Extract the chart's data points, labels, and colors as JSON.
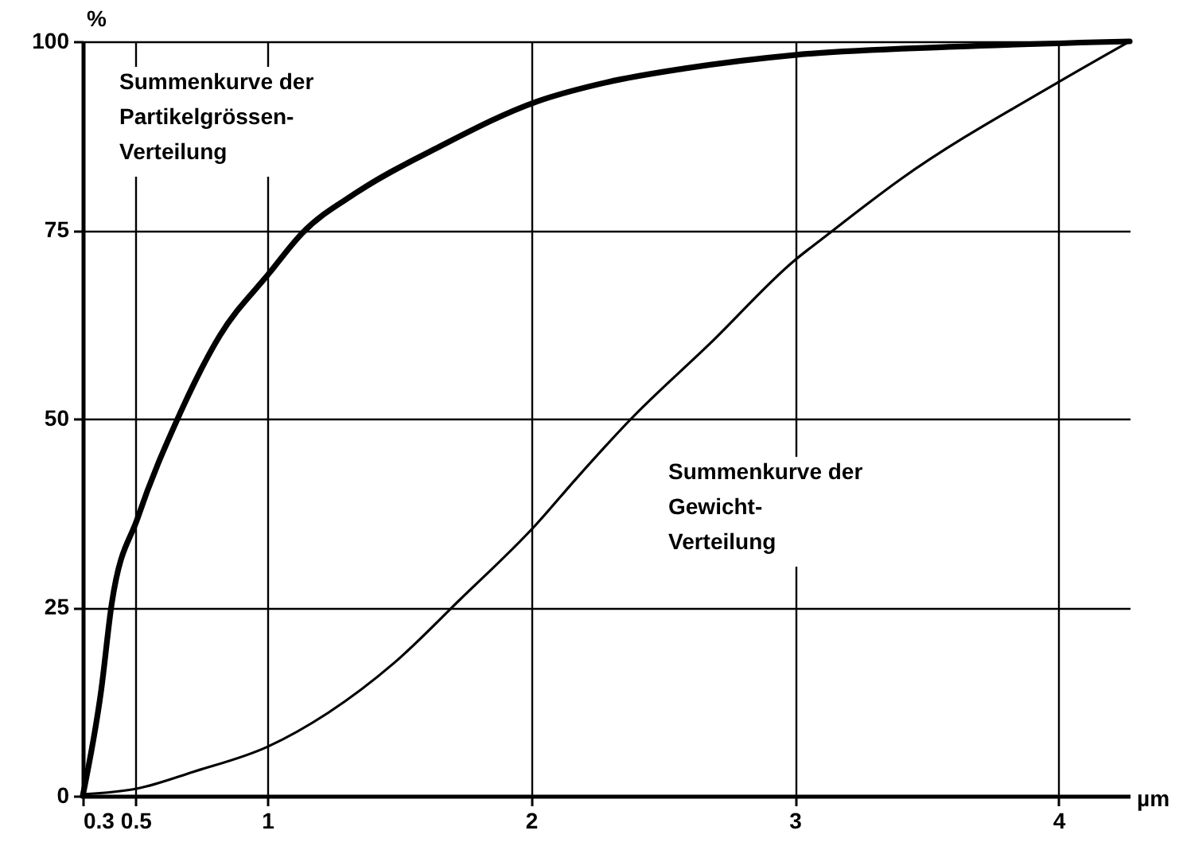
{
  "chart_data": {
    "type": "line",
    "xlabel": "µm",
    "ylabel": "%",
    "xlim": [
      0.3,
      4.27
    ],
    "xticks": [
      0.3,
      0.5,
      1,
      2,
      3,
      4
    ],
    "ylim": [
      0,
      100
    ],
    "yticks": [
      0,
      25,
      50,
      75,
      100
    ],
    "grid": true,
    "marker": "none",
    "line_style": "solid",
    "series": [
      {
        "name": "Summenkurve der\nPartikelgrössen-\nVerteilung",
        "color": "#000000",
        "x": [
          0.3,
          0.37,
          0.41,
          0.51,
          0.66,
          0.82,
          1.01,
          1.13,
          1.34,
          1.65,
          2.02,
          2.29,
          2.58,
          3.0,
          3.61,
          4.27
        ],
        "values": [
          0,
          14,
          25.5,
          37,
          50,
          61,
          69.4,
          74.5,
          80,
          86,
          92,
          94.6,
          96.4,
          98.2,
          99.3,
          100
        ]
      },
      {
        "name": "Summenkurve der\nGewicht-\nVerteilung",
        "color": "#000000",
        "x": [
          0.3,
          0.51,
          0.72,
          1.0,
          1.23,
          1.48,
          1.73,
          2.02,
          2.17,
          2.38,
          2.68,
          3.0,
          3.11,
          3.4,
          4.0,
          4.27
        ],
        "values": [
          0.2,
          1,
          3.2,
          6.5,
          11,
          17.6,
          26,
          36,
          42,
          50,
          60,
          71,
          74,
          81.7,
          94.6,
          100
        ]
      }
    ]
  }
}
